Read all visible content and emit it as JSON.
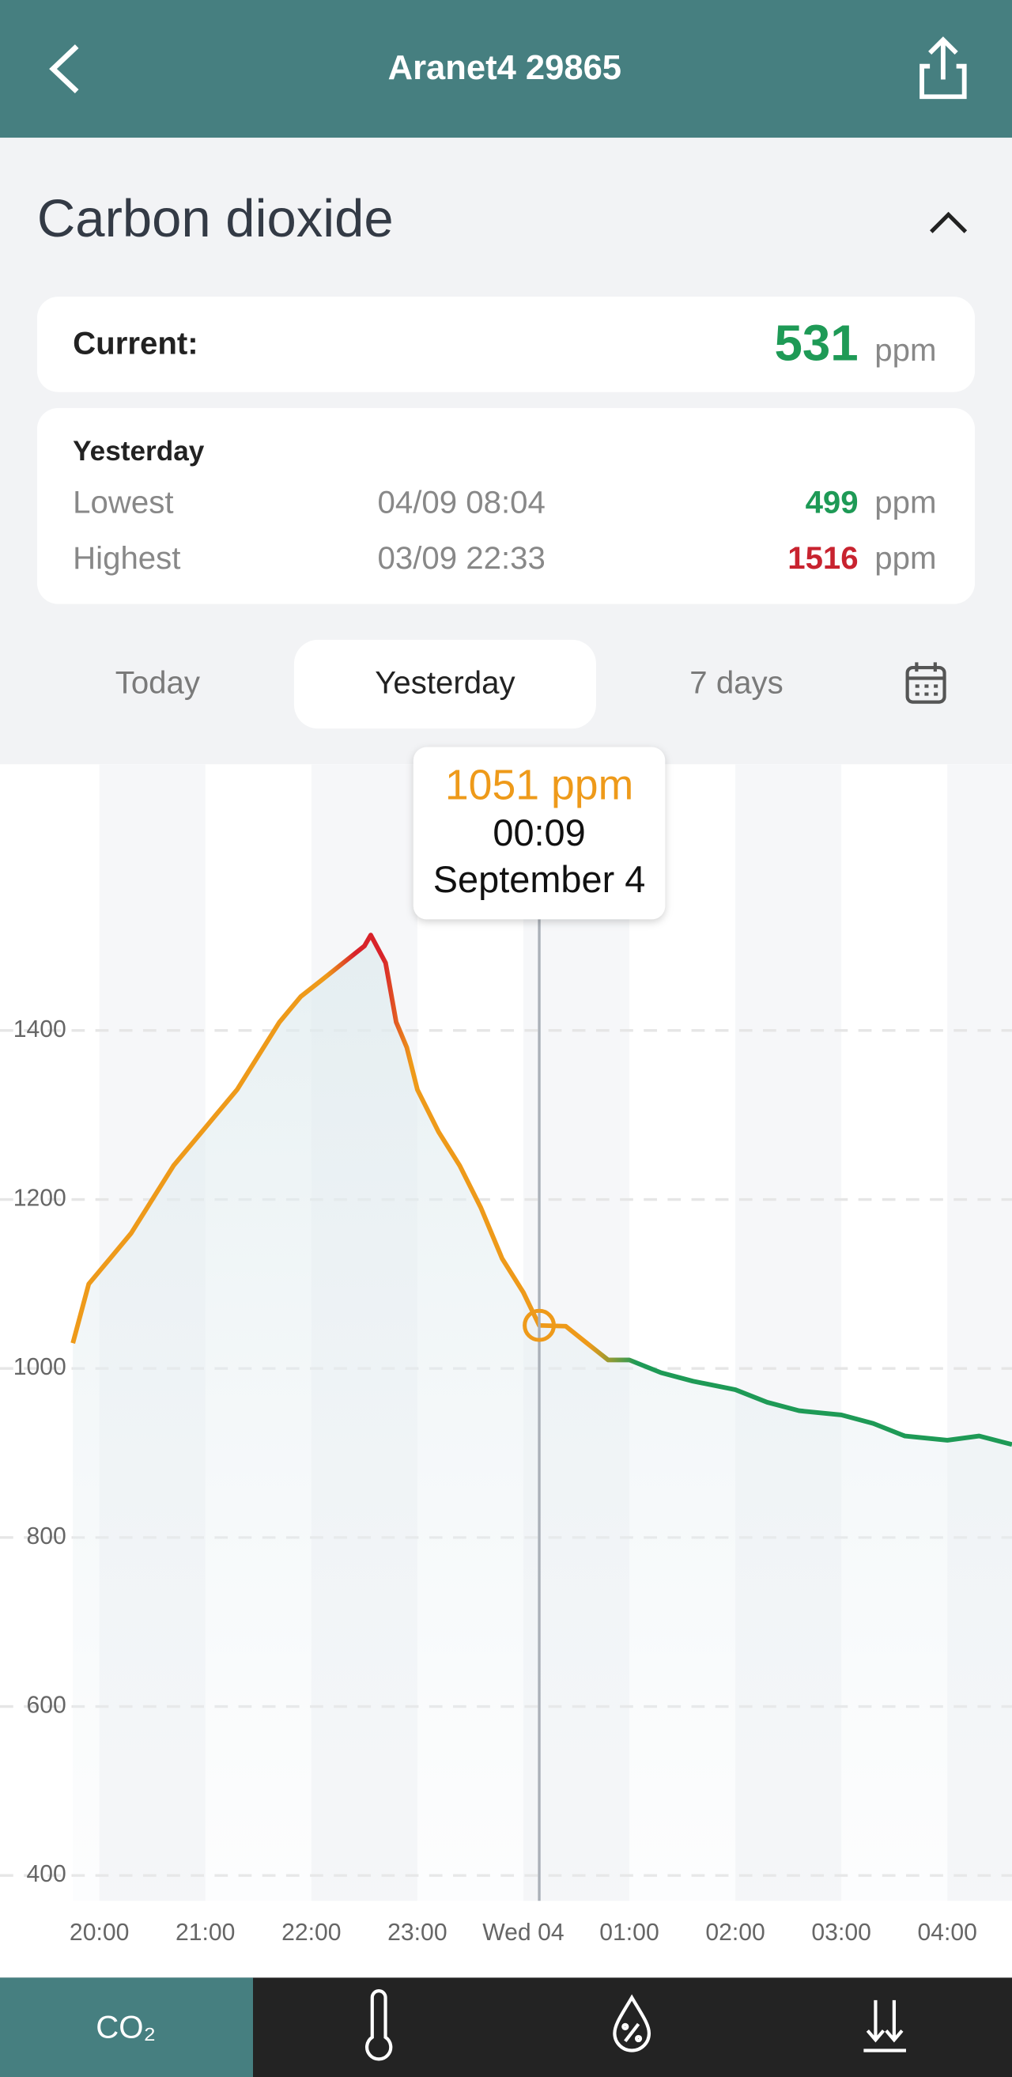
{
  "header": {
    "title": "Aranet4 29865"
  },
  "section": {
    "title": "Carbon dioxide"
  },
  "current": {
    "label": "Current:",
    "value": 531,
    "unit": "ppm"
  },
  "yesterday": {
    "title": "Yesterday",
    "rows": [
      {
        "label": "Lowest",
        "time": "04/09 08:04",
        "value": 499,
        "unit": "ppm"
      },
      {
        "label": "Highest",
        "time": "03/09 22:33",
        "value": 1516,
        "unit": "ppm"
      }
    ]
  },
  "tabs": {
    "items": [
      "Today",
      "Yesterday",
      "7 days"
    ],
    "selected": 1
  },
  "bottom_nav": {
    "first": "CO₂"
  },
  "chart_data": {
    "type": "line",
    "x": [
      19.75,
      19.9,
      20.1,
      20.3,
      20.5,
      20.7,
      20.9,
      21.1,
      21.3,
      21.5,
      21.7,
      21.9,
      22.1,
      22.3,
      22.5,
      22.56,
      22.7,
      22.8,
      22.9,
      23.0,
      23.2,
      23.4,
      23.6,
      23.8,
      24.0,
      24.15,
      24.4,
      24.6,
      24.8,
      25.0,
      25.3,
      25.6,
      26.0,
      26.3,
      26.6,
      27.0,
      27.3,
      27.6,
      28.0,
      28.3,
      28.61
    ],
    "values": [
      1030,
      1100,
      1130,
      1160,
      1200,
      1240,
      1270,
      1300,
      1330,
      1370,
      1410,
      1440,
      1460,
      1480,
      1500,
      1513,
      1480,
      1410,
      1380,
      1330,
      1280,
      1240,
      1190,
      1130,
      1090,
      1051,
      1050,
      1030,
      1010,
      1010,
      995,
      985,
      975,
      960,
      950,
      945,
      935,
      920,
      915,
      920,
      910
    ],
    "colors": [
      "#ee9a1a",
      "#d8232a",
      "#1e9a56"
    ],
    "xlim": [
      19.75,
      28.61
    ],
    "ylim": [
      370,
      1715
    ],
    "yticks": [
      400,
      600,
      800,
      1000,
      1200,
      1400
    ],
    "xticks": [
      {
        "value": 20,
        "label": "20:00"
      },
      {
        "value": 21,
        "label": "21:00"
      },
      {
        "value": 22,
        "label": "22:00"
      },
      {
        "value": 23,
        "label": "23:00"
      },
      {
        "value": 24,
        "label": "Wed 04"
      },
      {
        "value": 25,
        "label": "01:00"
      },
      {
        "value": 26,
        "label": "02:00"
      },
      {
        "value": 27,
        "label": "03:00"
      },
      {
        "value": 28,
        "label": "04:00"
      }
    ],
    "grid": true,
    "tooltip": {
      "x": 24.15,
      "value": 1051,
      "value_label": "1051 ppm",
      "time": "00:09",
      "date": "September 4"
    }
  }
}
